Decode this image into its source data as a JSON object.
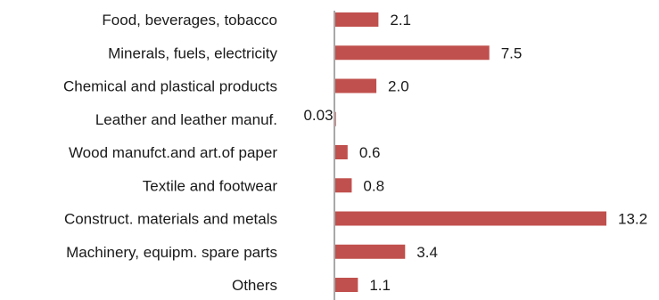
{
  "chart_data": {
    "type": "bar",
    "orientation": "horizontal",
    "categories": [
      "Food, beverages, tobacco",
      "Minerals, fuels, electricity",
      "Chemical and plastical products",
      "Leather and leather manuf.",
      "Wood manufct.and art.of paper",
      "Textile and footwear",
      "Construct. materials and metals",
      "Machinery, equipm. spare parts",
      "Others"
    ],
    "values": [
      2.1,
      7.5,
      2.0,
      0.03,
      0.6,
      0.8,
      13.2,
      3.4,
      1.1
    ],
    "value_labels": [
      "2.1",
      "7.5",
      "2.0",
      "0.03",
      "0.6",
      "0.8",
      "13.2",
      "3.4",
      "1.1"
    ],
    "title": "",
    "xlabel": "",
    "ylabel": "",
    "xlim": [
      0,
      13.2
    ],
    "grid": false,
    "legend": "none",
    "bar_color": "#c0504d",
    "axis_color": "#8c8c8c",
    "text_color": "#1a1a1a"
  }
}
